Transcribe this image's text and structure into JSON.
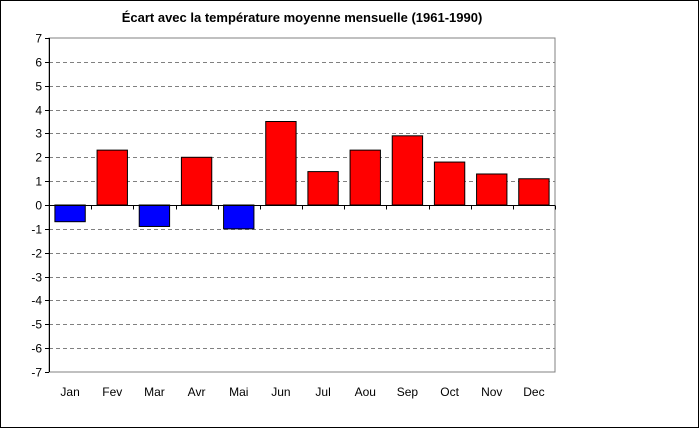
{
  "chart_data": {
    "type": "bar",
    "title": "Écart avec la température moyenne mensuelle (1961-1990)",
    "xlabel": "",
    "ylabel": "",
    "categories": [
      "Jan",
      "Fev",
      "Mar",
      "Avr",
      "Mai",
      "Jun",
      "Jul",
      "Aou",
      "Sep",
      "Oct",
      "Nov",
      "Dec"
    ],
    "values": [
      -0.7,
      2.3,
      -0.9,
      2.0,
      -1.0,
      3.5,
      1.4,
      2.3,
      2.9,
      1.8,
      1.3,
      1.1
    ],
    "ylim": [
      -7,
      7
    ],
    "yticks": [
      7,
      6,
      5,
      4,
      3,
      2,
      1,
      0,
      -1,
      -2,
      -3,
      -4,
      -5,
      -6,
      -7
    ],
    "grid": "horizontal dashed",
    "legend": "none",
    "colors": {
      "positive": "#ff0000",
      "negative": "#0000ff",
      "grid": "#808080",
      "axis": "#000000"
    }
  }
}
